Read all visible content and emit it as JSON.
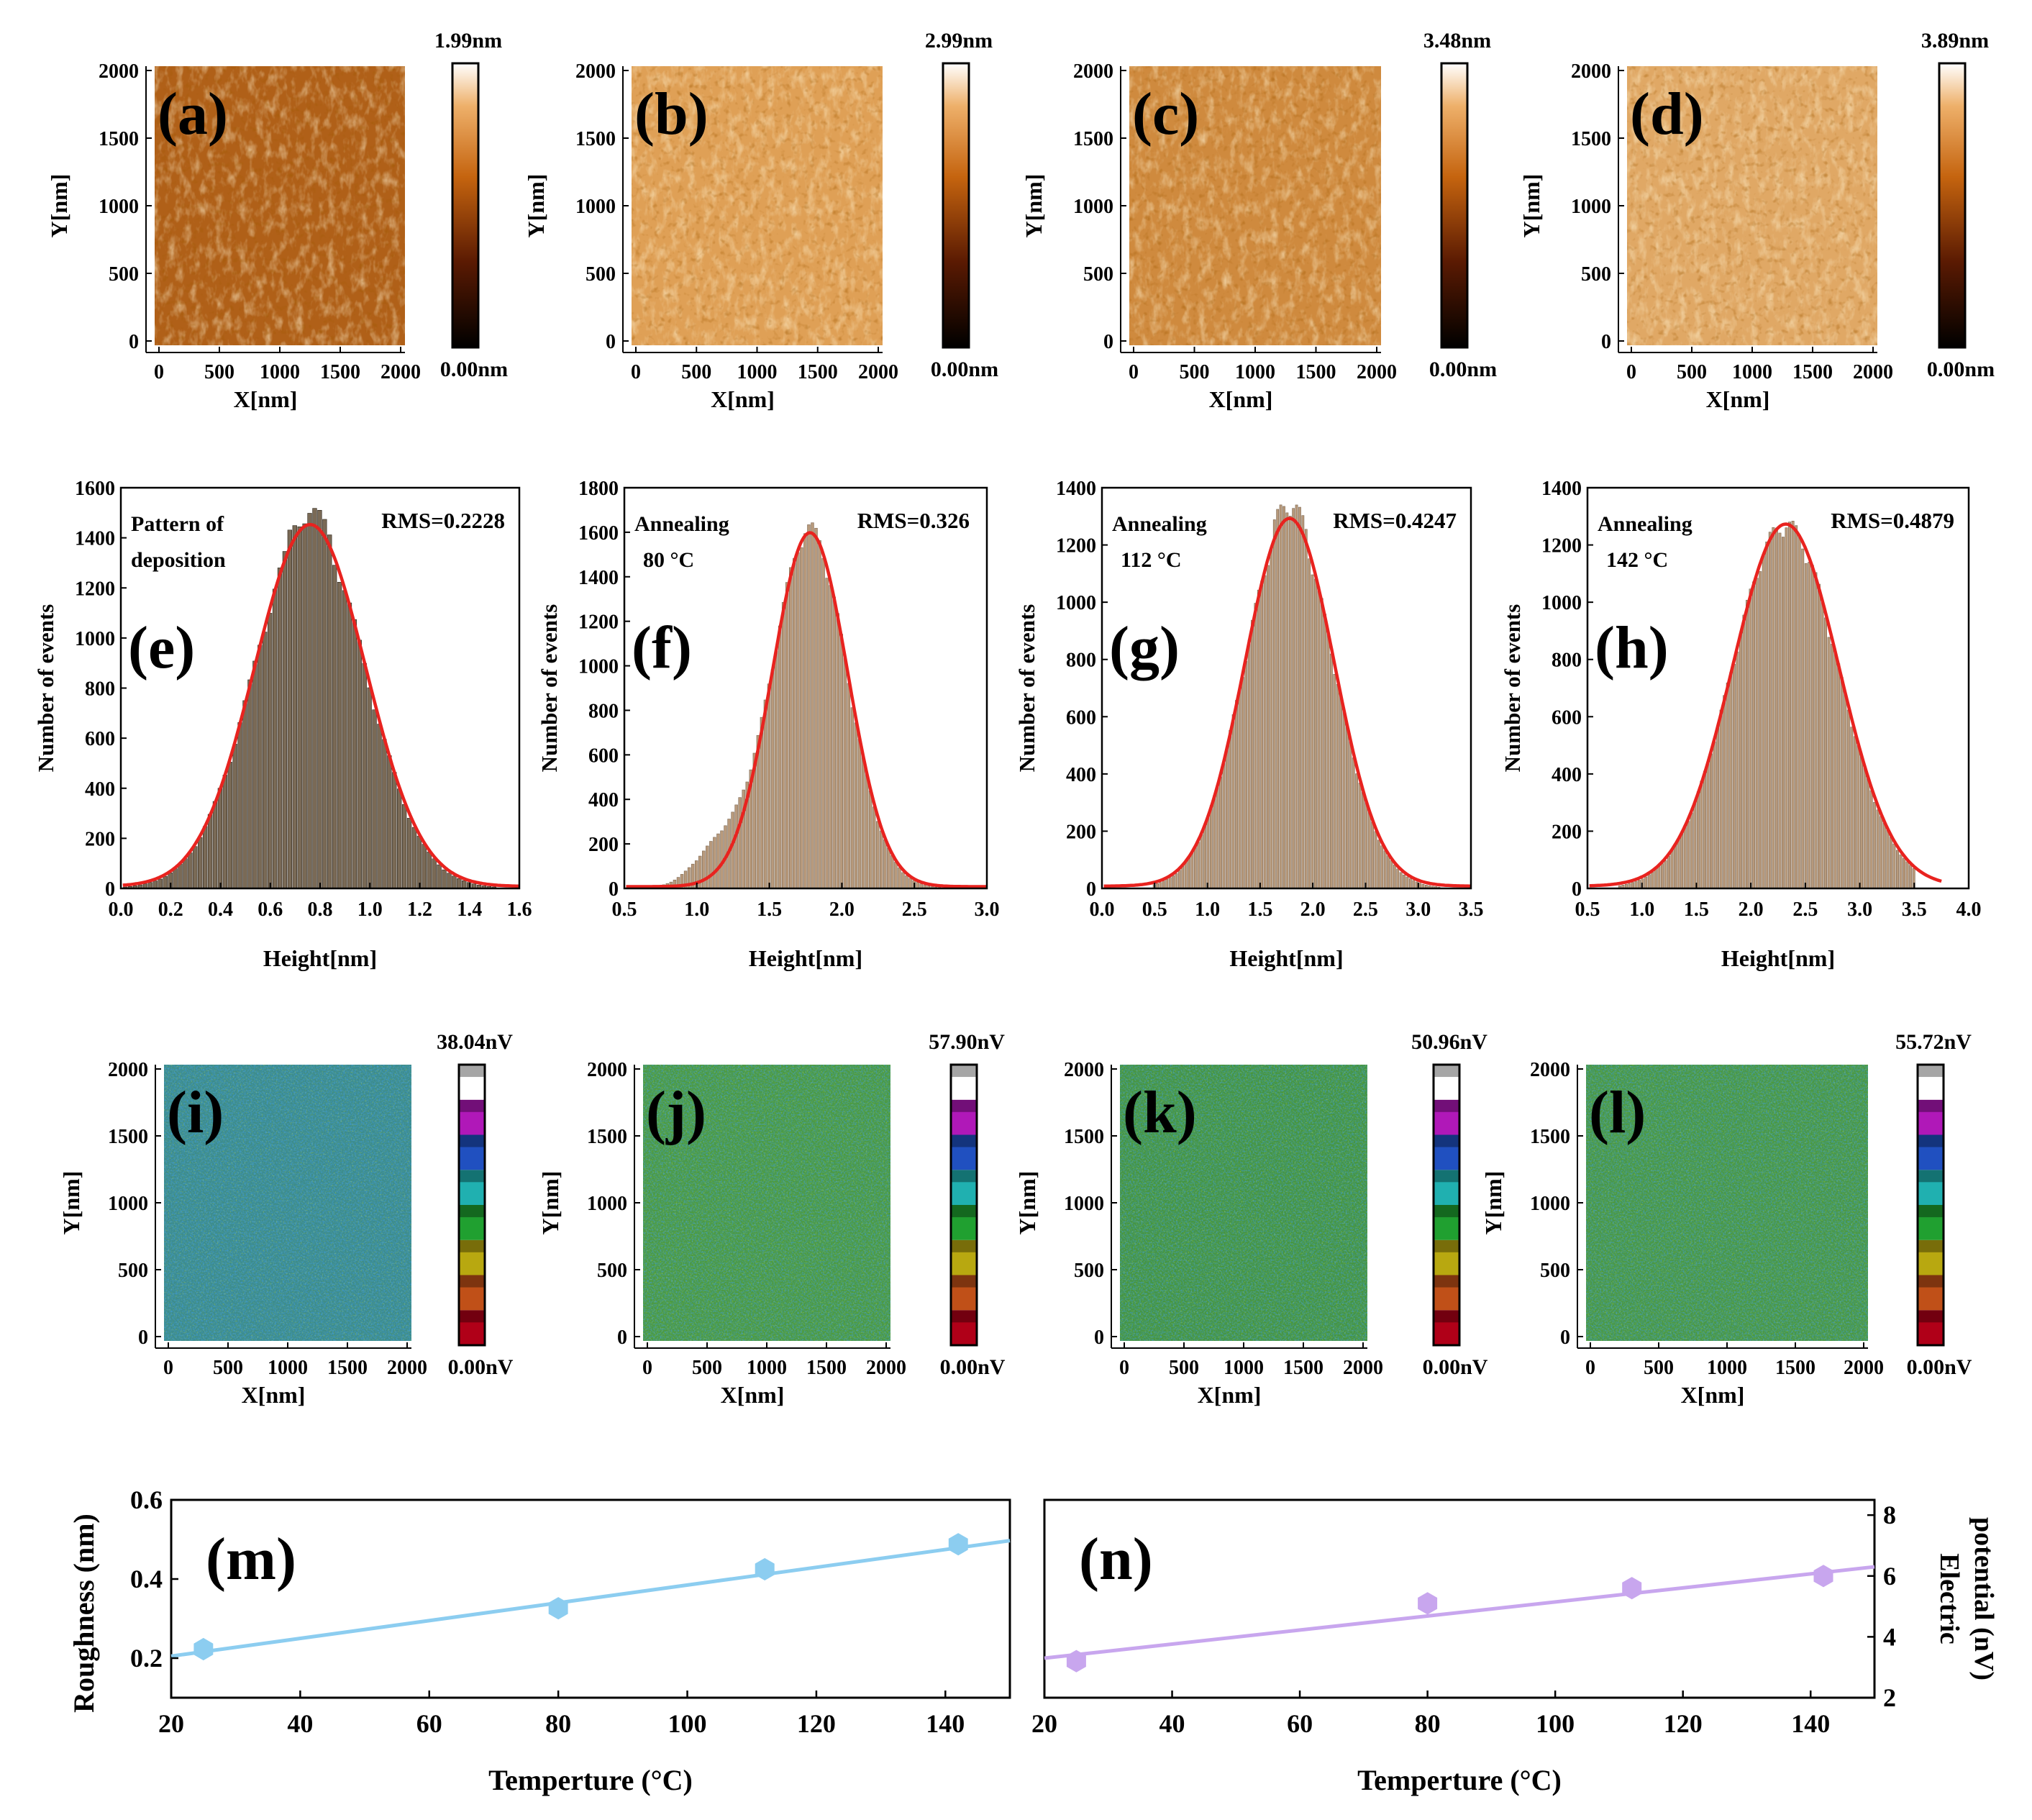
{
  "chart_data": [
    {
      "id": "a",
      "type": "heatmap",
      "panel_label": "(a)",
      "colormap": "afm-copper",
      "xlabel": "X[nm]",
      "ylabel": "Y[nm]",
      "xlim": [
        0,
        2000
      ],
      "ylim": [
        0,
        2000
      ],
      "x_ticks": [
        "0",
        "500",
        "1000",
        "1500",
        "2000"
      ],
      "y_ticks": [
        "0",
        "500",
        "1000",
        "1500",
        "2000"
      ],
      "colorbar": {
        "max_label": "1.99nm",
        "min_label": "0.00nm",
        "max": 1.99,
        "min": 0
      }
    },
    {
      "id": "b",
      "type": "heatmap",
      "panel_label": "(b)",
      "colormap": "afm-copper",
      "xlabel": "X[nm]",
      "ylabel": "Y[nm]",
      "xlim": [
        0,
        2000
      ],
      "ylim": [
        0,
        2000
      ],
      "x_ticks": [
        "0",
        "500",
        "1000",
        "1500",
        "2000"
      ],
      "y_ticks": [
        "0",
        "500",
        "1000",
        "1500",
        "2000"
      ],
      "colorbar": {
        "max_label": "2.99nm",
        "min_label": "0.00nm",
        "max": 2.99,
        "min": 0
      }
    },
    {
      "id": "c",
      "type": "heatmap",
      "panel_label": "(c)",
      "colormap": "afm-copper",
      "xlabel": "X[nm]",
      "ylabel": "Y[nm]",
      "xlim": [
        0,
        2000
      ],
      "ylim": [
        0,
        2000
      ],
      "x_ticks": [
        "0",
        "500",
        "1000",
        "1500",
        "2000"
      ],
      "y_ticks": [
        "0",
        "500",
        "1000",
        "1500",
        "2000"
      ],
      "colorbar": {
        "max_label": "3.48nm",
        "min_label": "0.00nm",
        "max": 3.48,
        "min": 0
      }
    },
    {
      "id": "d",
      "type": "heatmap",
      "panel_label": "(d)",
      "colormap": "afm-copper",
      "xlabel": "X[nm]",
      "ylabel": "Y[nm]",
      "xlim": [
        0,
        2000
      ],
      "ylim": [
        0,
        2000
      ],
      "x_ticks": [
        "0",
        "500",
        "1000",
        "1500",
        "2000"
      ],
      "y_ticks": [
        "0",
        "500",
        "1000",
        "1500",
        "2000"
      ],
      "colorbar": {
        "max_label": "3.89nm",
        "min_label": "0.00nm",
        "max": 3.89,
        "min": 0
      }
    },
    {
      "id": "e",
      "type": "bar",
      "panel_label": "(e)",
      "subtype": "histogram-with-gaussian-fit",
      "annotation_lines": [
        "Pattern of",
        "deposition"
      ],
      "rms_label": "RMS=0.2228",
      "xlabel": "Height[nm]",
      "ylabel": "Number of events",
      "xlim": [
        0,
        1.6
      ],
      "ylim": [
        0,
        1600
      ],
      "x_ticks": [
        0,
        0.2,
        0.4,
        0.6,
        0.8,
        1.0,
        1.2,
        1.4,
        1.6
      ],
      "y_ticks": [
        0,
        200,
        400,
        600,
        800,
        1000,
        1200,
        1400,
        1600
      ],
      "fit": {
        "mean": 0.76,
        "sigma": 0.2228,
        "peak": 1445
      },
      "bin_range": [
        0.02,
        1.5
      ],
      "bin_width": 0.02,
      "bar_peak": 1490
    },
    {
      "id": "f",
      "type": "bar",
      "panel_label": "(f)",
      "subtype": "histogram-with-gaussian-fit",
      "annotation_lines": [
        "Annealing",
        "80 °C"
      ],
      "rms_label": "RMS=0.326",
      "xlabel": "Height[nm]",
      "ylabel": "Number of events",
      "xlim": [
        0.5,
        3.0
      ],
      "ylim": [
        0,
        1800
      ],
      "x_ticks": [
        0.5,
        1.0,
        1.5,
        2.0,
        2.5,
        3.0
      ],
      "y_ticks": [
        0,
        200,
        400,
        600,
        800,
        1000,
        1200,
        1400,
        1600,
        1800
      ],
      "fit": {
        "mean": 1.78,
        "sigma": 0.26,
        "peak": 1590
      },
      "bin_range": [
        0.65,
        2.8
      ],
      "bin_width": 0.025,
      "bar_peak": 1600,
      "left_tail": true
    },
    {
      "id": "g",
      "type": "bar",
      "panel_label": "(g)",
      "subtype": "histogram-with-gaussian-fit",
      "annotation_lines": [
        "Annealing",
        "112 °C"
      ],
      "rms_label": "RMS=0.4247",
      "xlabel": "Height[nm]",
      "ylabel": "Number of events",
      "xlim": [
        0,
        3.5
      ],
      "ylim": [
        0,
        1400
      ],
      "x_ticks": [
        0.0,
        0.5,
        1.0,
        1.5,
        2.0,
        2.5,
        3.0,
        3.5
      ],
      "y_ticks": [
        0,
        200,
        400,
        600,
        800,
        1000,
        1200,
        1400
      ],
      "fit": {
        "mean": 1.78,
        "sigma": 0.4247,
        "peak": 1285
      },
      "bin_range": [
        0.5,
        3.2
      ],
      "bin_width": 0.03,
      "bar_peak": 1330
    },
    {
      "id": "h",
      "type": "bar",
      "panel_label": "(h)",
      "subtype": "histogram-with-gaussian-fit",
      "annotation_lines": [
        "Annealing",
        "142 °C"
      ],
      "rms_label": "RMS=0.4879",
      "xlabel": "Height[nm]",
      "ylabel": "Number of events",
      "xlim": [
        0.5,
        4.0
      ],
      "ylim": [
        0,
        1400
      ],
      "x_ticks": [
        0.5,
        1.0,
        1.5,
        2.0,
        2.5,
        3.0,
        3.5,
        4.0
      ],
      "y_ticks": [
        0,
        200,
        400,
        600,
        800,
        1000,
        1200,
        1400
      ],
      "fit": {
        "mean": 2.32,
        "sigma": 0.4879,
        "peak": 1265
      },
      "bin_range": [
        0.8,
        3.5
      ],
      "bin_width": 0.03,
      "bar_peak": 1260
    },
    {
      "id": "i",
      "type": "heatmap",
      "panel_label": "(i)",
      "colormap": "rainbow-potential",
      "xlabel": "X[nm]",
      "ylabel": "Y[nm]",
      "xlim": [
        0,
        2000
      ],
      "ylim": [
        0,
        2000
      ],
      "x_ticks": [
        "0",
        "500",
        "1000",
        "1500",
        "2000"
      ],
      "y_ticks": [
        "0",
        "500",
        "1000",
        "1500",
        "2000"
      ],
      "colorbar": {
        "max_label": "38.04nV",
        "min_label": "0.00nV",
        "max": 38.04,
        "min": 0
      }
    },
    {
      "id": "j",
      "type": "heatmap",
      "panel_label": "(j)",
      "colormap": "rainbow-potential",
      "xlabel": "X[nm]",
      "ylabel": "Y[nm]",
      "xlim": [
        0,
        2000
      ],
      "ylim": [
        0,
        2000
      ],
      "x_ticks": [
        "0",
        "500",
        "1000",
        "1500",
        "2000"
      ],
      "y_ticks": [
        "0",
        "500",
        "1000",
        "1500",
        "2000"
      ],
      "colorbar": {
        "max_label": "57.90nV",
        "min_label": "0.00nV",
        "max": 57.9,
        "min": 0
      }
    },
    {
      "id": "k",
      "type": "heatmap",
      "panel_label": "(k)",
      "colormap": "rainbow-potential",
      "xlabel": "X[nm]",
      "ylabel": "Y[nm]",
      "xlim": [
        0,
        2000
      ],
      "ylim": [
        0,
        2000
      ],
      "x_ticks": [
        "0",
        "500",
        "1000",
        "1500",
        "2000"
      ],
      "y_ticks": [
        "0",
        "500",
        "1000",
        "1500",
        "2000"
      ],
      "colorbar": {
        "max_label": "50.96nV",
        "min_label": "0.00nV",
        "max": 50.96,
        "min": 0
      }
    },
    {
      "id": "l",
      "type": "heatmap",
      "panel_label": "(l)",
      "colormap": "rainbow-potential",
      "xlabel": "X[nm]",
      "ylabel": "Y[nm]",
      "xlim": [
        0,
        2000
      ],
      "ylim": [
        0,
        2000
      ],
      "x_ticks": [
        "0",
        "500",
        "1000",
        "1500",
        "2000"
      ],
      "y_ticks": [
        "0",
        "500",
        "1000",
        "1500",
        "2000"
      ],
      "colorbar": {
        "max_label": "55.72nV",
        "min_label": "0.00nV",
        "max": 55.72,
        "min": 0
      }
    },
    {
      "id": "m",
      "type": "scatter",
      "panel_label": "(m)",
      "xlabel": "Temperture (°C)",
      "ylabel": "Roughness (nm)",
      "xlim": [
        20,
        150
      ],
      "ylim": [
        0.1,
        0.6
      ],
      "x_ticks": [
        20,
        40,
        60,
        80,
        100,
        120,
        140
      ],
      "y_ticks": [
        0.2,
        0.4,
        0.6
      ],
      "x": [
        25,
        80,
        112,
        142
      ],
      "y": [
        0.2228,
        0.326,
        0.4247,
        0.4879
      ],
      "fit_line": {
        "x": [
          20,
          150
        ],
        "y": [
          0.205,
          0.497
        ]
      },
      "color": "#8ccdf0",
      "line_color": "#8ccdf0"
    },
    {
      "id": "n",
      "type": "scatter",
      "panel_label": "(n)",
      "xlabel": "Temperture (°C)",
      "ylabel_lines": [
        "Electric",
        "potential (nV)"
      ],
      "xlim": [
        20,
        150
      ],
      "ylim": [
        2,
        8.5
      ],
      "x_ticks": [
        20,
        40,
        60,
        80,
        100,
        120,
        140
      ],
      "y_ticks": [
        2,
        4,
        6,
        8
      ],
      "x": [
        25,
        80,
        112,
        142
      ],
      "y": [
        3.2,
        5.1,
        5.6,
        6.0
      ],
      "fit_line": {
        "x": [
          20,
          150
        ],
        "y": [
          3.3,
          6.3
        ]
      },
      "color": "#c8a6ee",
      "line_color": "#c8a6ee"
    }
  ]
}
